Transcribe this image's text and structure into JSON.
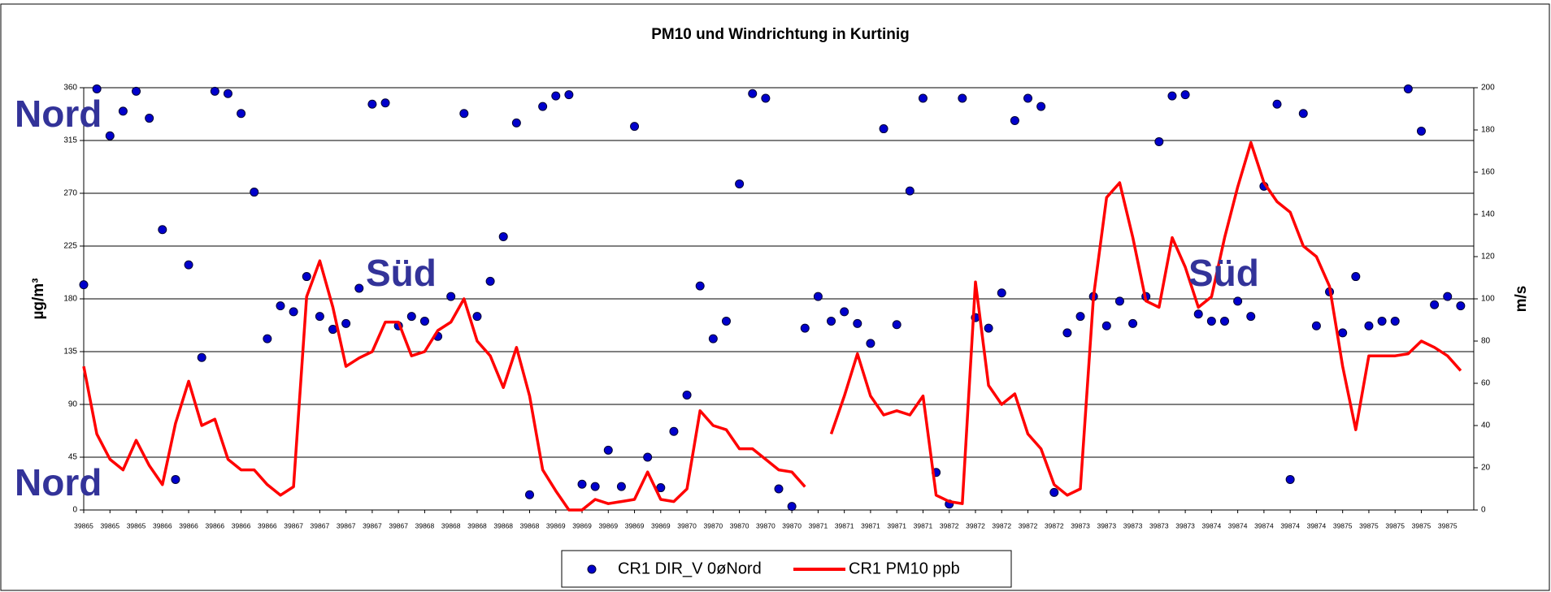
{
  "chart_data": {
    "type": "line",
    "title": "PM10 und Windrichtung in Kurtinig",
    "ylabel": "µg/m³",
    "y2label": "m/s",
    "annotations": [
      "Nord",
      "Süd",
      "Süd",
      "Nord"
    ],
    "legend": "bottom",
    "grid": true,
    "x": [
      39865,
      39865.1,
      39865.2,
      39865.3,
      39865.4,
      39865.5,
      39865.6,
      39865.7,
      39865.8,
      39865.9,
      39866,
      39866.1,
      39866.2,
      39866.3,
      39866.4,
      39866.5,
      39866.6,
      39866.7,
      39866.8,
      39866.9,
      39867,
      39867.1,
      39867.2,
      39867.3,
      39867.4,
      39867.5,
      39867.6,
      39867.7,
      39867.8,
      39867.9,
      39868,
      39868.1,
      39868.2,
      39868.3,
      39868.4,
      39868.5,
      39868.6,
      39868.7,
      39868.8,
      39868.9,
      39869,
      39869.1,
      39869.2,
      39869.3,
      39869.4,
      39869.5,
      39869.6,
      39869.7,
      39869.8,
      39869.9,
      39870,
      39870.1,
      39870.2,
      39870.3,
      39870.4,
      39870.5,
      39870.6,
      39870.7,
      39870.8,
      39870.9,
      39871,
      39871.1,
      39871.2,
      39871.3,
      39871.4,
      39871.5,
      39871.6,
      39871.7,
      39871.8,
      39871.9,
      39872,
      39872.1,
      39872.2,
      39872.3,
      39872.4,
      39872.5,
      39872.6,
      39872.7,
      39872.8,
      39872.9,
      39873,
      39873.1,
      39873.2,
      39873.3,
      39873.4,
      39873.5,
      39873.6,
      39873.7,
      39873.8,
      39873.9,
      39874,
      39874.1,
      39874.2,
      39874.3,
      39874.4,
      39874.5,
      39874.6,
      39874.7,
      39874.8,
      39874.9,
      39875,
      39875.1,
      39875.2,
      39875.3,
      39875.4,
      39875.5
    ],
    "series": [
      {
        "name": "CR1 DIR_V 0øNord",
        "type": "scatter",
        "color": "#0000cc",
        "axis": "y",
        "values": [
          192,
          359,
          319,
          340,
          357,
          334,
          239,
          26,
          209,
          130,
          357,
          355,
          338,
          271,
          146,
          174,
          169,
          199,
          165,
          154,
          159,
          189,
          346,
          347,
          157,
          165,
          161,
          148,
          182,
          338,
          165,
          195,
          233,
          330,
          13,
          344,
          353,
          354,
          22,
          20,
          51,
          20,
          327,
          45,
          19,
          67,
          98,
          191,
          146,
          161,
          278,
          355,
          351,
          18,
          3,
          155,
          182,
          161,
          169,
          159,
          142,
          325,
          158,
          272,
          351,
          32,
          5,
          351,
          164,
          155,
          185,
          332,
          351,
          344,
          15,
          151,
          165,
          182,
          157,
          178,
          159,
          182,
          314,
          353,
          354,
          167,
          161,
          161,
          178,
          165,
          276,
          346,
          26,
          338,
          157,
          186,
          151,
          199,
          157,
          161,
          161,
          359,
          323,
          175,
          182,
          174
        ]
      },
      {
        "name": "CR1 PM10 ppb",
        "type": "line",
        "color": "#ff0000",
        "axis": "y2",
        "values": [
          68,
          36,
          24,
          19,
          33,
          21,
          12,
          41,
          61,
          40,
          43,
          24,
          19,
          19,
          12,
          7,
          11,
          101,
          118,
          96,
          68,
          72,
          75,
          89,
          89,
          73,
          75,
          85,
          89,
          100,
          80,
          73,
          58,
          77,
          54,
          19,
          9,
          0,
          0,
          5,
          3,
          4,
          5,
          18,
          5,
          4,
          10,
          47,
          40,
          38,
          29,
          29,
          24,
          19,
          18,
          11,
          null,
          36,
          54,
          74,
          54,
          45,
          47,
          45,
          54,
          7,
          4,
          3,
          108,
          59,
          50,
          55,
          36,
          29,
          12,
          7,
          10,
          101,
          148,
          155,
          129,
          99,
          96,
          129,
          115,
          96,
          101,
          129,
          153,
          174,
          155,
          146,
          141,
          125,
          120,
          106,
          68,
          38,
          73,
          73,
          73,
          74,
          80,
          77,
          73,
          66
        ]
      }
    ],
    "xlim": [
      39865,
      39875.6
    ],
    "xticks": [
      39865,
      {
        "value": 39865.2,
        "label": "39865"
      },
      {
        "value": 39865.4,
        "label": "39865"
      },
      {
        "value": 39865.6,
        "label": "39866"
      },
      {
        "value": 39865.8,
        "label": "39866"
      },
      39866,
      {
        "value": 39866.2,
        "label": "39866"
      },
      {
        "value": 39866.4,
        "label": "39866"
      },
      {
        "value": 39866.6,
        "label": "39867"
      },
      {
        "value": 39866.8,
        "label": "39867"
      },
      39867,
      {
        "value": 39867.2,
        "label": "39867"
      },
      {
        "value": 39867.4,
        "label": "39867"
      },
      {
        "value": 39867.6,
        "label": "39868"
      },
      {
        "value": 39867.8,
        "label": "39868"
      },
      39868,
      {
        "value": 39868.2,
        "label": "39868"
      },
      {
        "value": 39868.4,
        "label": "39868"
      },
      {
        "value": 39868.6,
        "label": "39869"
      },
      {
        "value": 39868.8,
        "label": "39869"
      },
      39869,
      {
        "value": 39869.2,
        "label": "39869"
      },
      {
        "value": 39869.4,
        "label": "39869"
      },
      {
        "value": 39869.6,
        "label": "39870"
      },
      {
        "value": 39869.8,
        "label": "39870"
      },
      39870,
      {
        "value": 39870.2,
        "label": "39870"
      },
      {
        "value": 39870.4,
        "label": "39870"
      },
      {
        "value": 39870.6,
        "label": "39871"
      },
      {
        "value": 39870.8,
        "label": "39871"
      },
      39871,
      {
        "value": 39871.2,
        "label": "39871"
      },
      {
        "value": 39871.4,
        "label": "39871"
      },
      {
        "value": 39871.6,
        "label": "39872"
      },
      {
        "value": 39871.8,
        "label": "39872"
      },
      39872,
      {
        "value": 39872.2,
        "label": "39872"
      },
      {
        "value": 39872.4,
        "label": "39872"
      },
      {
        "value": 39872.6,
        "label": "39873"
      },
      {
        "value": 39872.8,
        "label": "39873"
      },
      39873,
      {
        "value": 39873.2,
        "label": "39873"
      },
      {
        "value": 39873.4,
        "label": "39873"
      },
      {
        "value": 39873.6,
        "label": "39874"
      },
      {
        "value": 39873.8,
        "label": "39874"
      },
      39874,
      {
        "value": 39874.2,
        "label": "39874"
      },
      {
        "value": 39874.4,
        "label": "39874"
      },
      {
        "value": 39874.6,
        "label": "39875"
      },
      {
        "value": 39874.8,
        "label": "39875"
      },
      39875,
      {
        "value": 39875.2,
        "label": "39875"
      },
      {
        "value": 39875.4,
        "label": "39875"
      }
    ],
    "ylim": [
      0,
      360
    ],
    "yticks": [
      0,
      45,
      90,
      135,
      180,
      225,
      270,
      315,
      360
    ],
    "y2lim": [
      0,
      200
    ],
    "y2ticks": [
      0,
      20,
      40,
      60,
      80,
      100,
      120,
      140,
      160,
      180,
      200
    ]
  }
}
